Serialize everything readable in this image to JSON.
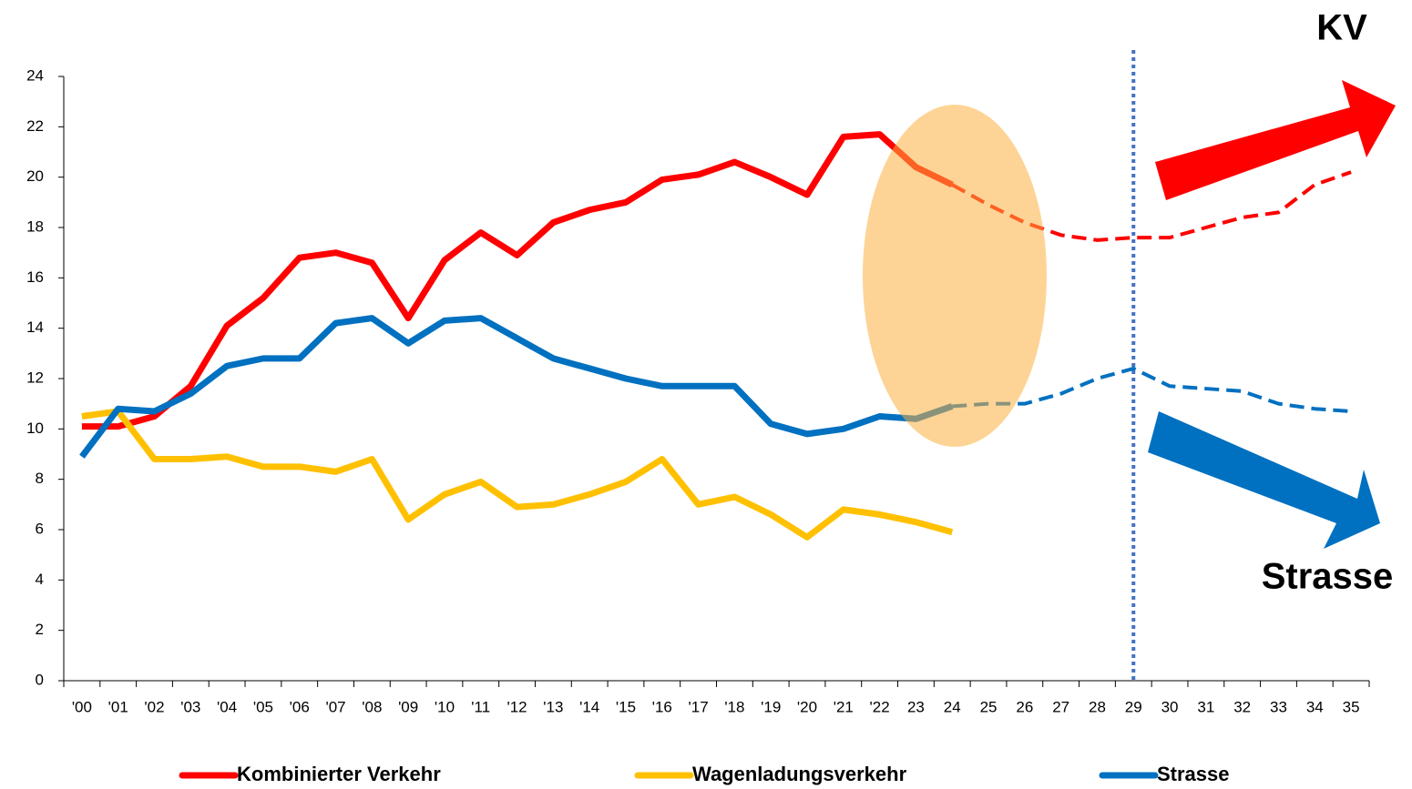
{
  "chart_data": {
    "type": "line",
    "categories": [
      "'00",
      "'01",
      "'02",
      "'03",
      "'04",
      "'05",
      "'06",
      "'07",
      "'08",
      "'09",
      "'10",
      "'11",
      "'12",
      "'13",
      "'14",
      "'15",
      "'16",
      "'17",
      "'18",
      "'19",
      "'20",
      "'21",
      "'22",
      "23",
      "24",
      "25",
      "26",
      "27",
      "28",
      "29",
      "30",
      "31",
      "32",
      "33",
      "34",
      "35"
    ],
    "series": [
      {
        "name": "Kombinierter Verkehr",
        "color": "#ff0000",
        "dashed_from": 24,
        "values": [
          10.1,
          10.1,
          10.5,
          11.7,
          14.1,
          15.2,
          16.8,
          17.0,
          16.6,
          14.4,
          16.7,
          17.8,
          16.9,
          18.2,
          18.7,
          19.0,
          19.9,
          20.1,
          20.6,
          20.0,
          19.3,
          21.6,
          21.7,
          20.4,
          19.7,
          18.9,
          18.2,
          17.7,
          17.5,
          17.6,
          17.6,
          18.0,
          18.4,
          18.6,
          19.7,
          20.2
        ]
      },
      {
        "name": "Wagenladungsverkehr",
        "color": "#ffc000",
        "dashed_from": 24,
        "values": [
          10.5,
          10.7,
          8.8,
          8.8,
          8.9,
          8.5,
          8.5,
          8.3,
          8.8,
          6.4,
          7.4,
          7.9,
          6.9,
          7.0,
          7.4,
          7.9,
          8.8,
          7.0,
          7.3,
          6.6,
          5.7,
          6.8,
          6.6,
          6.3,
          5.9,
          null,
          null,
          null,
          null,
          null,
          null,
          null,
          null,
          null,
          null,
          null
        ]
      },
      {
        "name": "Strasse",
        "color": "#0070c0",
        "dashed_from": 24,
        "values": [
          8.9,
          10.8,
          10.7,
          11.4,
          12.5,
          12.8,
          12.8,
          14.2,
          14.4,
          13.4,
          14.3,
          14.4,
          13.6,
          12.8,
          12.4,
          12.0,
          11.7,
          11.7,
          11.7,
          10.2,
          9.8,
          10.0,
          10.5,
          10.4,
          10.9,
          11.0,
          11.0,
          11.4,
          12.0,
          12.4,
          11.7,
          11.6,
          11.5,
          11.0,
          10.8,
          10.7
        ]
      }
    ],
    "ylim": [
      0,
      24
    ],
    "yticks": [
      0,
      2,
      4,
      6,
      8,
      10,
      12,
      14,
      16,
      18,
      20,
      22,
      24
    ],
    "vline_at": 29,
    "annotations": [
      "KV",
      "Strasse"
    ],
    "legend": "bottom"
  }
}
